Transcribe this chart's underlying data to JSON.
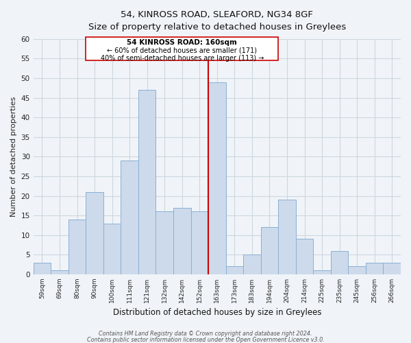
{
  "title1": "54, KINROSS ROAD, SLEAFORD, NG34 8GF",
  "title2": "Size of property relative to detached houses in Greylees",
  "xlabel": "Distribution of detached houses by size in Greylees",
  "ylabel": "Number of detached properties",
  "bar_labels": [
    "59sqm",
    "69sqm",
    "80sqm",
    "90sqm",
    "100sqm",
    "111sqm",
    "121sqm",
    "132sqm",
    "142sqm",
    "152sqm",
    "163sqm",
    "173sqm",
    "183sqm",
    "194sqm",
    "204sqm",
    "214sqm",
    "225sqm",
    "235sqm",
    "245sqm",
    "256sqm",
    "266sqm"
  ],
  "bar_values": [
    3,
    1,
    14,
    21,
    13,
    29,
    47,
    16,
    17,
    16,
    49,
    2,
    5,
    12,
    19,
    9,
    1,
    6,
    2,
    3,
    3
  ],
  "bar_color": "#cddaeb",
  "bar_edgecolor": "#8aafd4",
  "highlight_index": 10,
  "highlight_line_color": "#cc0000",
  "annotation_title": "54 KINROSS ROAD: 160sqm",
  "annotation_line1": "← 60% of detached houses are smaller (171)",
  "annotation_line2": "40% of semi-detached houses are larger (113) →",
  "annotation_box_edgecolor": "#cc0000",
  "annotation_box_facecolor": "#ffffff",
  "ylim": [
    0,
    60
  ],
  "yticks": [
    0,
    5,
    10,
    15,
    20,
    25,
    30,
    35,
    40,
    45,
    50,
    55,
    60
  ],
  "footer1": "Contains HM Land Registry data © Crown copyright and database right 2024.",
  "footer2": "Contains public sector information licensed under the Open Government Licence v3.0.",
  "bg_color": "#f0f4f8",
  "grid_color": "#ccd6e0"
}
